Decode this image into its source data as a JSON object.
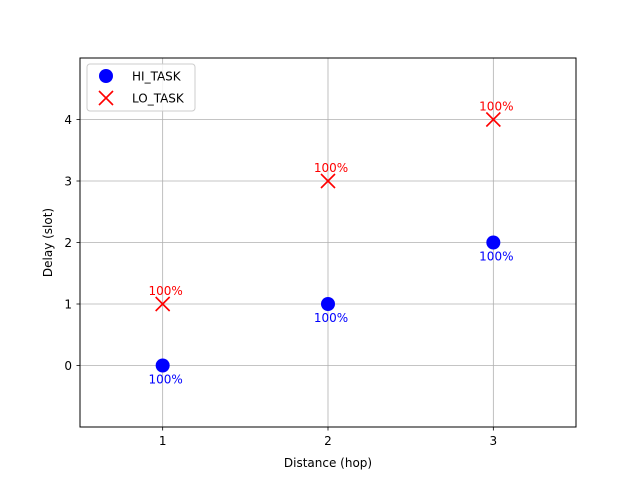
{
  "chart_data": {
    "type": "scatter",
    "title": "",
    "xlabel": "Distance (hop)",
    "ylabel": "Delay (slot)",
    "xlim": [
      0.5,
      3.5
    ],
    "ylim": [
      -1,
      5
    ],
    "xticks": [
      1,
      2,
      3
    ],
    "yticks": [
      0,
      1,
      2,
      3,
      4
    ],
    "grid": true,
    "legend_position": "top-left",
    "series": [
      {
        "name": "HI_TASK",
        "marker": "circle",
        "color": "#0000ff",
        "label_position": "below",
        "points": [
          {
            "x": 1,
            "y": 0,
            "label": "100%"
          },
          {
            "x": 2,
            "y": 1,
            "label": "100%"
          },
          {
            "x": 3,
            "y": 2,
            "label": "100%"
          }
        ]
      },
      {
        "name": "LO_TASK",
        "marker": "x",
        "color": "#ff0000",
        "label_position": "above",
        "points": [
          {
            "x": 1,
            "y": 1,
            "label": "100%"
          },
          {
            "x": 2,
            "y": 3,
            "label": "100%"
          },
          {
            "x": 3,
            "y": 4,
            "label": "100%"
          }
        ]
      }
    ]
  }
}
